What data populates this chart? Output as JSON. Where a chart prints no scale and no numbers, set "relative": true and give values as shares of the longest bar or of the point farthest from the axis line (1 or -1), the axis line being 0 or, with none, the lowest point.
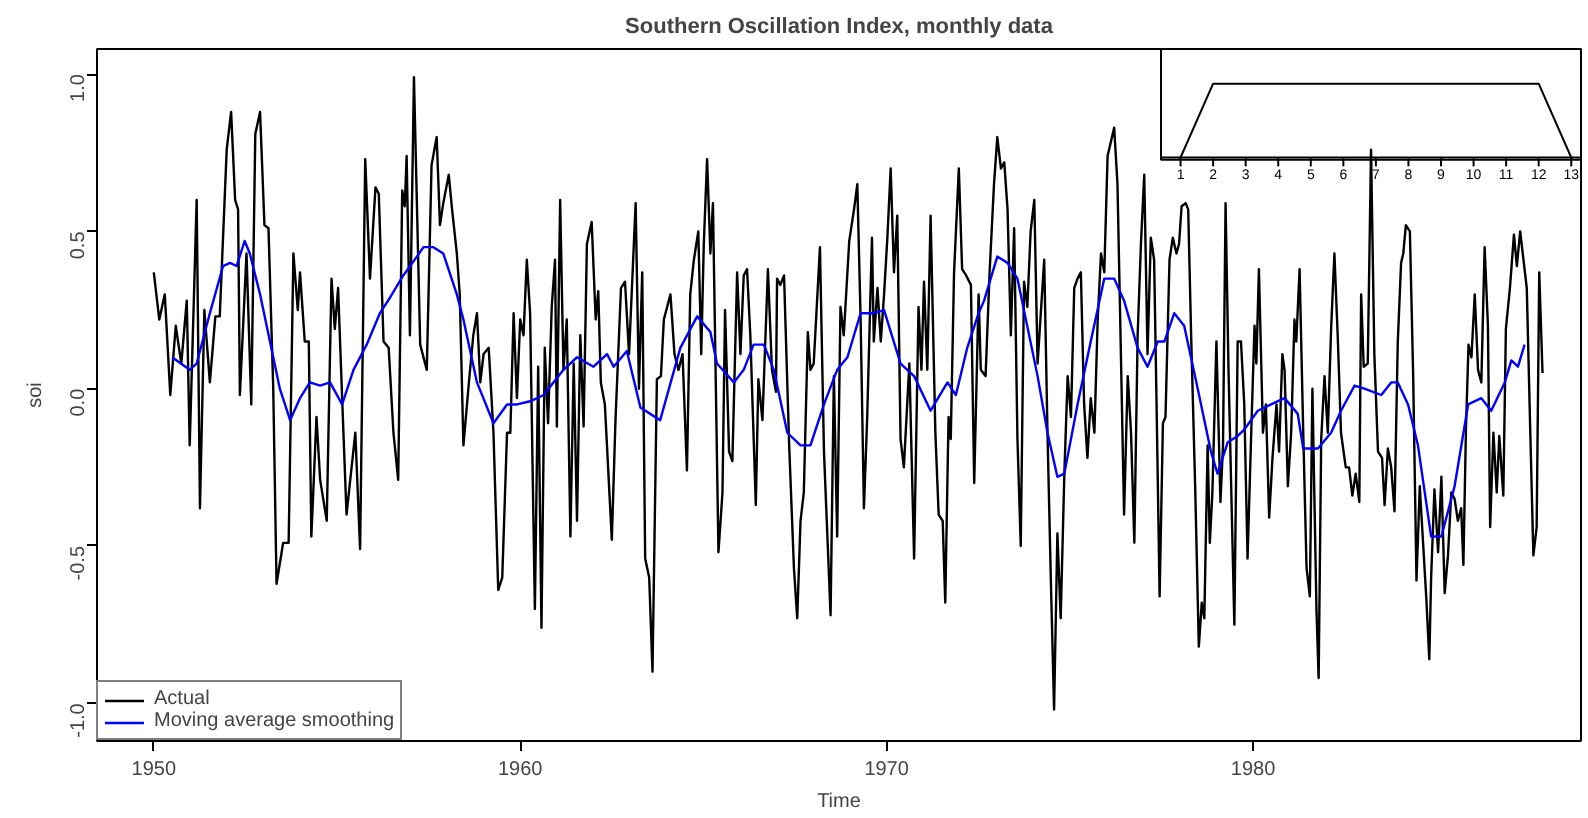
{
  "chart_data": [
    {
      "type": "line",
      "title": "Southern Oscillation Index, monthly data",
      "xlabel": "Time",
      "ylabel": "soi",
      "xlim": [
        1948.45,
        1988.95
      ],
      "ylim": [
        -1.12,
        1.08
      ],
      "xticks": [
        1950,
        1960,
        1970,
        1980
      ],
      "yticks": [
        {
          "value": -1.0,
          "label": "-1.0"
        },
        {
          "value": -0.5,
          "label": "-0.5"
        },
        {
          "value": 0.0,
          "label": "0.0"
        },
        {
          "value": 0.5,
          "label": "0.5"
        },
        {
          "value": 1.0,
          "label": "1.0"
        }
      ],
      "grid": false,
      "legend": "bottom left",
      "line_style": "solid",
      "series": [
        {
          "name": "Actual",
          "color": "#000000",
          "x": [
            1950.0,
            1950.15,
            1950.3,
            1950.45,
            1950.6,
            1950.75,
            1950.9,
            1950.98,
            1951.17,
            1951.26,
            1951.38,
            1951.53,
            1951.68,
            1951.8,
            1951.99,
            1952.11,
            1952.22,
            1952.3,
            1952.35,
            1952.53,
            1952.66,
            1952.77,
            1952.9,
            1953.02,
            1953.13,
            1953.26,
            1953.35,
            1953.53,
            1953.68,
            1953.81,
            1953.93,
            1953.99,
            1954.12,
            1954.23,
            1954.3,
            1954.44,
            1954.54,
            1954.72,
            1954.85,
            1954.94,
            1955.03,
            1955.14,
            1955.26,
            1955.5,
            1955.63,
            1955.77,
            1955.9,
            1956.05,
            1956.14,
            1956.27,
            1956.41,
            1956.54,
            1956.67,
            1956.78,
            1956.85,
            1956.9,
            1956.99,
            1957.1,
            1957.27,
            1957.45,
            1957.58,
            1957.72,
            1957.81,
            1957.9,
            1958.05,
            1958.14,
            1958.27,
            1958.35,
            1958.45,
            1958.6,
            1958.72,
            1958.82,
            1958.91,
            1959.0,
            1959.14,
            1959.27,
            1959.4,
            1959.51,
            1959.64,
            1959.73,
            1959.82,
            1959.91,
            1960.0,
            1960.09,
            1960.18,
            1960.27,
            1960.4,
            1960.49,
            1960.58,
            1960.67,
            1960.76,
            1960.86,
            1960.95,
            1961.0,
            1961.09,
            1961.18,
            1961.27,
            1961.37,
            1961.46,
            1961.55,
            1961.64,
            1961.73,
            1961.82,
            1961.95,
            1962.06,
            1962.13,
            1962.2,
            1962.31,
            1962.5,
            1962.6,
            1962.75,
            1962.86,
            1962.97,
            1963.15,
            1963.24,
            1963.33,
            1963.41,
            1963.52,
            1963.61,
            1963.73,
            1963.84,
            1963.92,
            1964.1,
            1964.21,
            1964.32,
            1964.43,
            1964.55,
            1964.64,
            1964.74,
            1964.86,
            1964.94,
            1965.01,
            1965.1,
            1965.19,
            1965.26,
            1965.41,
            1965.52,
            1965.59,
            1965.7,
            1965.79,
            1965.92,
            1966.01,
            1966.1,
            1966.19,
            1966.28,
            1966.43,
            1966.5,
            1966.61,
            1966.76,
            1966.87,
            1966.98,
            1967.01,
            1967.1,
            1967.2,
            1967.34,
            1967.47,
            1967.56,
            1967.65,
            1967.74,
            1967.85,
            1967.92,
            1968.01,
            1968.18,
            1968.29,
            1968.47,
            1968.56,
            1968.65,
            1968.74,
            1968.83,
            1968.98,
            1969.11,
            1969.2,
            1969.29,
            1969.38,
            1969.47,
            1969.6,
            1969.65,
            1969.75,
            1969.84,
            1969.93,
            1970.02,
            1970.11,
            1970.2,
            1970.29,
            1970.38,
            1970.47,
            1970.62,
            1970.75,
            1970.87,
            1970.95,
            1971.02,
            1971.11,
            1971.2,
            1971.33,
            1971.42,
            1971.53,
            1971.6,
            1971.69,
            1971.75,
            1971.84,
            1971.97,
            1972.06,
            1972.17,
            1972.3,
            1972.39,
            1972.51,
            1972.57,
            1972.7,
            1972.81,
            1972.93,
            1973.02,
            1973.12,
            1973.21,
            1973.3,
            1973.39,
            1973.48,
            1973.57,
            1973.66,
            1973.75,
            1973.84,
            1973.93,
            1974.03,
            1974.12,
            1974.3,
            1974.39,
            1974.48,
            1974.57,
            1974.66,
            1974.75,
            1974.85,
            1974.94,
            1975.03,
            1975.12,
            1975.21,
            1975.3,
            1975.39,
            1975.48,
            1975.57,
            1975.67,
            1975.76,
            1975.85,
            1975.94,
            1976.03,
            1976.21,
            1976.3,
            1976.39,
            1976.48,
            1976.58,
            1976.67,
            1976.76,
            1976.85,
            1976.94,
            1977.03,
            1977.12,
            1977.21,
            1977.3,
            1977.36,
            1977.45,
            1977.54,
            1977.61,
            1977.72,
            1977.81,
            1977.91,
            1977.98,
            1978.05,
            1978.16,
            1978.23,
            1978.31,
            1978.42,
            1978.52,
            1978.6,
            1978.67,
            1978.76,
            1978.82,
            1978.89,
            1979.0,
            1979.11,
            1979.18,
            1979.25,
            1979.33,
            1979.49,
            1979.58,
            1979.67,
            1979.76,
            1979.85,
            1979.95,
            1980.04,
            1980.09,
            1980.16,
            1980.27,
            1980.35,
            1980.44,
            1980.53,
            1980.64,
            1980.71,
            1980.8,
            1980.86,
            1980.95,
            1981.04,
            1981.13,
            1981.18,
            1981.27,
            1981.37,
            1981.46,
            1981.55,
            1981.62,
            1981.73,
            1981.79,
            1981.86,
            1981.95,
            1982.04,
            1982.13,
            1982.22,
            1982.31,
            1982.4,
            1982.53,
            1982.62,
            1982.71,
            1982.8,
            1982.9,
            1982.95,
            1983.02,
            1983.13,
            1983.22,
            1983.31,
            1983.41,
            1983.52,
            1983.59,
            1983.68,
            1983.77,
            1983.86,
            1983.95,
            1984.04,
            1984.1,
            1984.17,
            1984.28,
            1984.37,
            1984.46,
            1984.55,
            1984.64,
            1984.73,
            1984.81,
            1984.86,
            1984.95,
            1985.05,
            1985.14,
            1985.23,
            1985.32,
            1985.41,
            1985.5,
            1985.59,
            1985.68,
            1985.74,
            1985.81,
            1985.88,
            1985.96,
            1986.05,
            1986.14,
            1986.23,
            1986.32,
            1986.41,
            1986.47,
            1986.56,
            1986.65,
            1986.72,
            1986.83,
            1986.9,
            1987.01,
            1987.12,
            1987.2,
            1987.29,
            1987.38,
            1987.47,
            1987.56,
            1987.65,
            1987.74,
            1987.81,
            1987.9
          ],
          "values": [
            0.37,
            0.22,
            0.3,
            -0.02,
            0.2,
            0.08,
            0.28,
            -0.18,
            0.6,
            -0.38,
            0.25,
            0.02,
            0.23,
            0.23,
            0.76,
            0.88,
            0.6,
            0.57,
            -0.02,
            0.43,
            -0.05,
            0.81,
            0.88,
            0.52,
            0.51,
            0.0,
            -0.62,
            -0.49,
            -0.49,
            0.43,
            0.25,
            0.37,
            0.15,
            0.15,
            -0.47,
            -0.09,
            -0.29,
            -0.42,
            0.35,
            0.19,
            0.32,
            -0.03,
            -0.4,
            -0.14,
            -0.51,
            0.73,
            0.35,
            0.64,
            0.62,
            0.15,
            0.13,
            -0.14,
            -0.29,
            0.63,
            0.58,
            0.74,
            0.17,
            0.99,
            0.14,
            0.06,
            0.71,
            0.8,
            0.52,
            0.59,
            0.68,
            0.57,
            0.43,
            0.3,
            -0.18,
            0.02,
            0.17,
            0.24,
            0.02,
            0.11,
            0.13,
            -0.14,
            -0.64,
            -0.6,
            -0.14,
            -0.14,
            0.24,
            -0.03,
            0.22,
            0.17,
            0.41,
            0.24,
            -0.7,
            0.07,
            -0.76,
            0.13,
            -0.11,
            0.26,
            0.41,
            -0.12,
            0.6,
            0.06,
            0.22,
            -0.47,
            0.08,
            -0.42,
            0.17,
            -0.12,
            0.46,
            0.53,
            0.22,
            0.31,
            0.02,
            -0.05,
            -0.48,
            -0.1,
            0.32,
            0.34,
            0.11,
            0.59,
            0.0,
            0.37,
            -0.54,
            -0.6,
            -0.9,
            0.03,
            0.04,
            0.22,
            0.3,
            0.11,
            0.06,
            0.11,
            -0.26,
            0.3,
            0.41,
            0.5,
            0.11,
            0.46,
            0.73,
            0.43,
            0.59,
            -0.52,
            -0.33,
            0.25,
            -0.2,
            -0.23,
            0.37,
            0.11,
            0.36,
            0.38,
            0.17,
            -0.37,
            0.03,
            -0.1,
            0.38,
            0.06,
            -0.01,
            0.35,
            0.33,
            0.36,
            -0.18,
            -0.57,
            -0.73,
            -0.42,
            -0.33,
            0.18,
            0.06,
            0.08,
            0.45,
            -0.2,
            -0.72,
            0.04,
            -0.47,
            0.26,
            0.17,
            0.47,
            0.57,
            0.65,
            0.22,
            -0.38,
            -0.09,
            0.48,
            0.15,
            0.32,
            0.15,
            0.3,
            0.48,
            0.7,
            0.37,
            0.55,
            -0.16,
            -0.25,
            0.08,
            -0.54,
            0.26,
            0.06,
            0.34,
            0.06,
            0.55,
            -0.14,
            -0.4,
            -0.42,
            -0.68,
            -0.09,
            -0.16,
            0.37,
            0.7,
            0.38,
            0.36,
            0.33,
            -0.3,
            0.3,
            0.06,
            0.04,
            0.37,
            0.65,
            0.8,
            0.7,
            0.72,
            0.57,
            0.17,
            0.51,
            -0.16,
            -0.5,
            0.34,
            0.26,
            0.5,
            0.6,
            0.08,
            0.41,
            -0.14,
            -0.6,
            -1.02,
            -0.46,
            -0.73,
            -0.27,
            0.04,
            -0.09,
            0.32,
            0.35,
            0.37,
            -0.05,
            -0.22,
            -0.03,
            -0.14,
            0.22,
            0.43,
            0.37,
            0.74,
            0.83,
            0.65,
            0.13,
            -0.4,
            0.04,
            -0.14,
            -0.49,
            0.17,
            0.46,
            0.68,
            0.11,
            0.48,
            0.41,
            0.0,
            -0.66,
            -0.11,
            -0.09,
            0.41,
            0.48,
            0.43,
            0.46,
            0.58,
            0.59,
            0.57,
            0.17,
            -0.31,
            -0.82,
            -0.68,
            -0.73,
            -0.18,
            -0.49,
            -0.33,
            0.15,
            -0.36,
            -0.18,
            0.59,
            0.06,
            -0.75,
            0.15,
            0.15,
            -0.05,
            -0.54,
            -0.14,
            0.2,
            0.08,
            0.38,
            -0.14,
            -0.05,
            -0.41,
            -0.22,
            -0.05,
            -0.2,
            0.11,
            0.06,
            -0.31,
            -0.14,
            0.22,
            0.15,
            0.38,
            -0.14,
            -0.57,
            -0.66,
            0.0,
            -0.7,
            -0.92,
            -0.16,
            0.04,
            -0.14,
            0.19,
            0.43,
            0.17,
            -0.14,
            -0.25,
            -0.25,
            -0.34,
            -0.27,
            -0.36,
            0.3,
            0.07,
            0.08,
            0.76,
            0.11,
            -0.2,
            -0.22,
            -0.37,
            -0.19,
            -0.25,
            -0.39,
            0.15,
            0.4,
            0.43,
            0.52,
            0.5,
            0.04,
            -0.61,
            -0.31,
            -0.49,
            -0.67,
            -0.86,
            -0.6,
            -0.32,
            -0.52,
            -0.28,
            -0.65,
            -0.53,
            -0.33,
            -0.35,
            -0.42,
            -0.38,
            -0.56,
            -0.13,
            0.14,
            0.1,
            0.3,
            0.06,
            0.02,
            0.45,
            0.2,
            -0.44,
            -0.14,
            -0.33,
            -0.15,
            -0.34,
            0.19,
            0.32,
            0.49,
            0.39,
            0.5,
            0.41,
            0.32,
            -0.11,
            -0.53,
            -0.44,
            0.37,
            0.05
          ]
        },
        {
          "name": "Moving average smoothing",
          "color": "#0000ff",
          "x": [
            1950.5,
            1950.98,
            1951.17,
            1951.53,
            1951.89,
            1952.08,
            1952.26,
            1952.48,
            1952.62,
            1952.9,
            1953.17,
            1953.44,
            1953.72,
            1953.99,
            1954.26,
            1954.54,
            1954.81,
            1955.14,
            1955.45,
            1955.81,
            1956.17,
            1956.45,
            1956.81,
            1957.18,
            1957.36,
            1957.63,
            1957.9,
            1958.27,
            1958.45,
            1958.82,
            1959.27,
            1959.64,
            1959.91,
            1960.27,
            1960.64,
            1961.18,
            1961.55,
            1962.0,
            1962.37,
            1962.55,
            1962.91,
            1963.28,
            1963.55,
            1963.82,
            1964.37,
            1964.83,
            1965.19,
            1965.37,
            1965.83,
            1966.1,
            1966.37,
            1966.65,
            1966.92,
            1967.29,
            1967.65,
            1967.92,
            1968.29,
            1968.65,
            1968.93,
            1969.29,
            1969.65,
            1969.93,
            1970.38,
            1970.75,
            1971.2,
            1971.66,
            1971.89,
            1972.2,
            1972.51,
            1972.66,
            1973.02,
            1973.3,
            1973.57,
            1974.12,
            1974.39,
            1974.66,
            1974.85,
            1975.21,
            1975.57,
            1975.94,
            1976.21,
            1976.48,
            1976.85,
            1977.12,
            1977.4,
            1977.58,
            1977.85,
            1978.12,
            1978.49,
            1978.85,
            1979.03,
            1979.31,
            1979.58,
            1979.76,
            1980.13,
            1980.49,
            1980.86,
            1981.22,
            1981.37,
            1981.77,
            1982.13,
            1982.4,
            1982.77,
            1983.04,
            1983.5,
            1983.77,
            1983.95,
            1984.23,
            1984.5,
            1984.86,
            1985.14,
            1985.5,
            1985.87,
            1986.23,
            1986.5,
            1986.87,
            1987.05,
            1987.23,
            1987.41
          ],
          "values": [
            0.1,
            0.06,
            0.08,
            0.24,
            0.39,
            0.4,
            0.39,
            0.47,
            0.43,
            0.3,
            0.15,
            0.0,
            -0.1,
            -0.03,
            0.02,
            0.01,
            0.02,
            -0.05,
            0.06,
            0.14,
            0.24,
            0.29,
            0.36,
            0.42,
            0.45,
            0.45,
            0.43,
            0.3,
            0.22,
            0.02,
            -0.11,
            -0.05,
            -0.05,
            -0.04,
            -0.02,
            0.06,
            0.1,
            0.07,
            0.11,
            0.07,
            0.12,
            -0.06,
            -0.08,
            -0.1,
            0.13,
            0.23,
            0.18,
            0.08,
            0.02,
            0.06,
            0.14,
            0.14,
            0.06,
            -0.14,
            -0.18,
            -0.18,
            -0.05,
            0.06,
            0.1,
            0.24,
            0.24,
            0.25,
            0.08,
            0.04,
            -0.07,
            0.02,
            -0.02,
            0.13,
            0.24,
            0.28,
            0.42,
            0.4,
            0.35,
            0.04,
            -0.14,
            -0.28,
            -0.27,
            -0.05,
            0.15,
            0.35,
            0.35,
            0.28,
            0.13,
            0.07,
            0.15,
            0.15,
            0.24,
            0.2,
            0.0,
            -0.2,
            -0.27,
            -0.17,
            -0.15,
            -0.13,
            -0.07,
            -0.05,
            -0.03,
            -0.08,
            -0.19,
            -0.19,
            -0.14,
            -0.07,
            0.01,
            0.0,
            -0.02,
            0.02,
            0.02,
            -0.05,
            -0.18,
            -0.47,
            -0.47,
            -0.31,
            -0.05,
            -0.03,
            -0.07,
            0.02,
            0.09,
            0.07,
            0.14
          ]
        }
      ]
    },
    {
      "type": "line",
      "relative": true,
      "tick_labels": "x",
      "xlim": [
        0.4,
        13.3
      ],
      "xticks": [
        1,
        2,
        3,
        4,
        5,
        6,
        7,
        8,
        9,
        10,
        11,
        12,
        13
      ],
      "series": [
        {
          "color": "#000000",
          "x": [
            1,
            2,
            12,
            13
          ],
          "values": [
            0,
            1,
            1,
            0
          ]
        }
      ]
    }
  ]
}
